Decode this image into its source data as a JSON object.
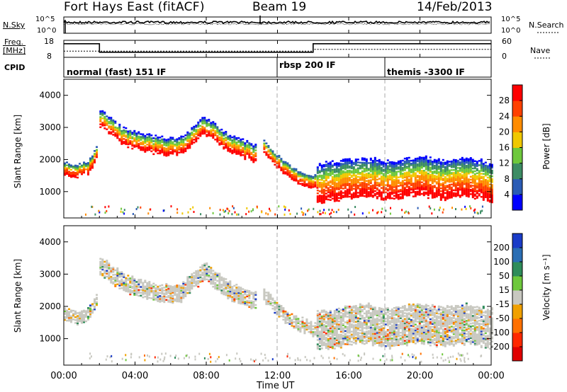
{
  "header": {
    "station": "Fort Hays East (fitACF)",
    "beam": "Beam 19",
    "date": "14/Feb/2013"
  },
  "noise_panel": {
    "left_label": "N.Sky",
    "right_label": "N.Search",
    "left_ticks": [
      "10^5",
      "10^0"
    ],
    "right_ticks": [
      "10^5",
      "10^0"
    ]
  },
  "freq_panel": {
    "left_label_1": "Freq.",
    "left_label_2": "[MHz]",
    "right_label": "Nave",
    "left_ticks": [
      "18",
      "8"
    ],
    "right_ticks": [
      "60",
      "0"
    ],
    "cpid_label": "CPID"
  },
  "cpid_modes": [
    {
      "name": "normal (fast) 151 IF",
      "start_hour": 0
    },
    {
      "name": "rbsp 200 IF",
      "start_hour": 12
    },
    {
      "name": "themis -3300 IF",
      "start_hour": 18
    }
  ],
  "x_axis": {
    "title": "Time UT",
    "ticks": [
      "00:00",
      "04:00",
      "08:00",
      "12:00",
      "16:00",
      "20:00",
      "00:00"
    ]
  },
  "power_panel": {
    "ylabel": "Slant Range [km]",
    "yticks": [
      "1000",
      "2000",
      "3000",
      "4000"
    ],
    "colorbar_title": "Power [dB]",
    "colorbar_ticks": [
      "4",
      "8",
      "12",
      "16",
      "20",
      "24",
      "28"
    ],
    "colors": [
      "#0000ff",
      "#2a5bb5",
      "#3c8c64",
      "#6ec83c",
      "#f0c800",
      "#ff8c00",
      "#ff4000",
      "#ff0000"
    ]
  },
  "velocity_panel": {
    "ylabel": "Slant Range [km]",
    "yticks": [
      "1000",
      "2000",
      "3000",
      "4000"
    ],
    "colorbar_title": "Velocity [m s⁻¹]",
    "colorbar_ticks": [
      "200",
      "100",
      "50",
      "15",
      "-15",
      "-50",
      "-100",
      "-200"
    ],
    "colors": [
      "#1a3cc8",
      "#2a6eb4",
      "#2e8c5a",
      "#6ec83c",
      "#c8c8c0",
      "#f0a000",
      "#ff7000",
      "#ff2800",
      "#e00000"
    ]
  },
  "chart_data": {
    "type": "heatmap",
    "x_range_hours": [
      0,
      24
    ],
    "y_range_km": [
      180,
      4500
    ],
    "grid": false,
    "series": [
      {
        "name": "power",
        "echo_bands": [
          {
            "t0": 0.0,
            "t1": 1.9,
            "r_mid": [
              1800,
              1700,
              1750,
              2300
            ],
            "width": 400
          },
          {
            "t0": 2.0,
            "t1": 10.8,
            "r_mid": [
              3300,
              2700,
              2500,
              2400,
              3100,
              2500,
              2200
            ],
            "width": 500
          },
          {
            "t0": 11.2,
            "t1": 14.2,
            "r_mid": [
              2400,
              1600,
              1300
            ],
            "width": 400
          },
          {
            "t0": 14.2,
            "t1": 24.0,
            "r_mid": [
              1300,
              1400,
              1500,
              1350,
              1550,
              1400,
              1500,
              1350
            ],
            "width": 1200
          }
        ]
      },
      {
        "name": "velocity",
        "echo_bands": [
          {
            "t0": 0.0,
            "t1": 1.9,
            "r_mid": [
              1800,
              1700,
              1750,
              2300
            ],
            "width": 400
          },
          {
            "t0": 2.0,
            "t1": 10.8,
            "r_mid": [
              3300,
              2700,
              2500,
              2400,
              3100,
              2500,
              2200
            ],
            "width": 500
          },
          {
            "t0": 11.2,
            "t1": 14.2,
            "r_mid": [
              2400,
              1600,
              1300
            ],
            "width": 400
          },
          {
            "t0": 14.2,
            "t1": 24.0,
            "r_mid": [
              1300,
              1400,
              1500,
              1350,
              1550,
              1400,
              1500,
              1350
            ],
            "width": 1200
          }
        ]
      }
    ],
    "freq_mhz": [
      {
        "t0": 0.0,
        "t1": 2.0,
        "value": 16
      },
      {
        "t0": 2.0,
        "t1": 14.0,
        "value": 11
      },
      {
        "t0": 14.0,
        "t1": 24.0,
        "value": 16
      }
    ],
    "nave": [
      {
        "t0": 0.0,
        "t1": 14.0,
        "value": 22
      },
      {
        "t0": 14.0,
        "t1": 24.0,
        "value": 28
      }
    ]
  }
}
